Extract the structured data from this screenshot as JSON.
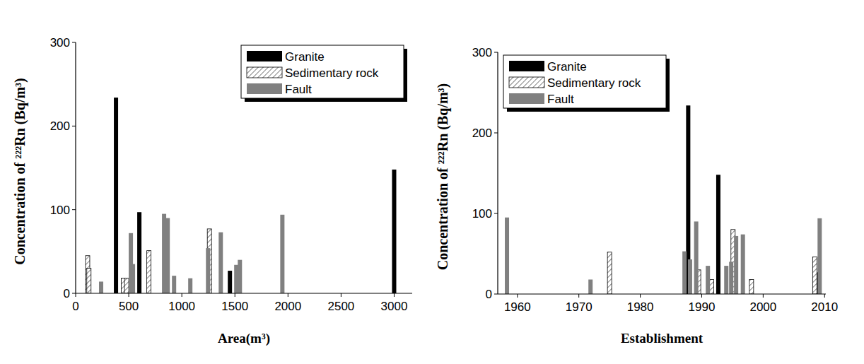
{
  "chart_data": [
    {
      "type": "bar",
      "x_label": "Area(m³)",
      "y_label": "Concentration of ²²²Rn (Bq/m³)",
      "xlim": [
        0,
        3170
      ],
      "xticks": [
        0,
        500,
        1000,
        1500,
        2000,
        2500,
        3000
      ],
      "ylim": [
        0,
        300
      ],
      "yticks": [
        0,
        100,
        200,
        300
      ],
      "legend": "upper right",
      "grid": false,
      "series": [
        {
          "name": "Granite",
          "color": "#000000",
          "x": [
            380,
            600,
            1453,
            3000
          ],
          "values": [
            234,
            97,
            27,
            148
          ]
        },
        {
          "name": "Sedimentary rock",
          "color": "#ffffff",
          "marker": "hatch",
          "x": [
            113,
            125,
            450,
            480,
            690,
            1260
          ],
          "values": [
            45,
            30,
            18,
            18,
            51,
            77
          ]
        },
        {
          "name": "Fault",
          "color": "#808080",
          "x": [
            240,
            520,
            540,
            833,
            867,
            927,
            1080,
            1247,
            1367,
            1513,
            1547,
            1947
          ],
          "values": [
            14,
            72,
            35,
            95,
            90,
            21,
            18,
            54,
            73,
            34,
            40,
            94
          ]
        }
      ]
    },
    {
      "type": "bar",
      "x_label": "Establishment",
      "y_label": "Concentration of ²²²Rn (Bq/m³)",
      "xlim": [
        1956.8,
        2010.2
      ],
      "xticks": [
        1960,
        1970,
        1980,
        1990,
        2000,
        2010
      ],
      "ylim": [
        0,
        300
      ],
      "yticks": [
        0,
        100,
        200,
        300
      ],
      "legend": "upper left",
      "grid": false,
      "series": [
        {
          "name": "Granite",
          "color": "#000000",
          "x": [
            1987.8,
            1992.7,
            2008.6
          ],
          "values": [
            234,
            148,
            27
          ]
        },
        {
          "name": "Sedimentary rock",
          "color": "#ffffff",
          "marker": "hatch",
          "x": [
            1975.0,
            1989.5,
            1991.6,
            1995.1,
            1998.1,
            2008.4
          ],
          "values": [
            52,
            30,
            18,
            80,
            18,
            46
          ]
        },
        {
          "name": "Fault",
          "color": "#808080",
          "x": [
            1958.3,
            1971.9,
            1987.2,
            1988.1,
            1989.1,
            1991.0,
            1994.0,
            1994.8,
            1995.6,
            1996.7,
            2009.2
          ],
          "values": [
            95,
            18,
            53,
            43,
            90,
            35,
            35,
            40,
            72,
            74,
            94
          ]
        }
      ]
    }
  ]
}
